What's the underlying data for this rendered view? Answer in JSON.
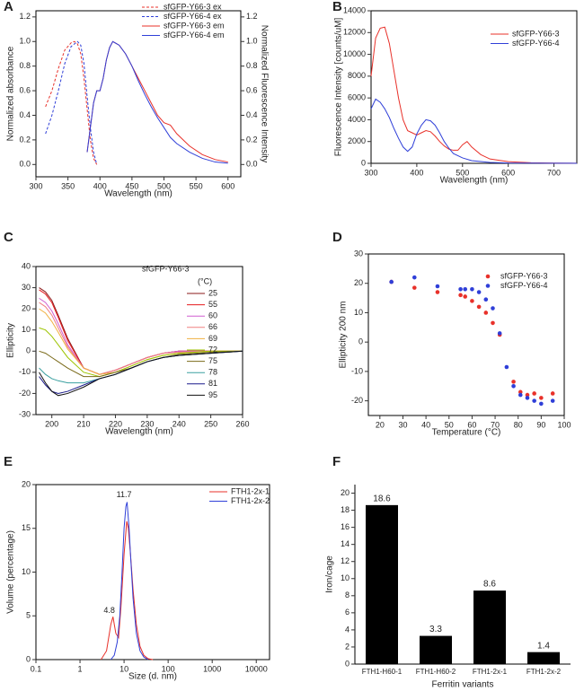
{
  "chart_data": [
    {
      "label": "A",
      "type": "line",
      "xlabel": "Wavelength (nm)",
      "ylabel": "Normalized absorbance",
      "y2label": "Normalized Fluorescence Intensity",
      "xlim": [
        300,
        620
      ],
      "xticks": [
        300,
        350,
        400,
        450,
        500,
        550,
        600
      ],
      "ylim": [
        -0.1,
        1.25
      ],
      "yticks": [
        {
          "value": 0,
          "label": "0.0"
        },
        0.2,
        0.4,
        0.6,
        0.8,
        {
          "value": 1,
          "label": "1.0"
        },
        1.2
      ],
      "y2lim": [
        -0.1,
        1.25
      ],
      "y2ticks": [
        {
          "value": 0,
          "label": "0.0"
        },
        0.2,
        0.4,
        0.6,
        0.8,
        {
          "value": 1,
          "label": "1.0"
        },
        1.2
      ],
      "legend": "upper right",
      "series": [
        {
          "name": "sfGFP-Y66-3 ex",
          "color": "#e8312a",
          "style": "dashed",
          "x": [
            315,
            325,
            335,
            345,
            355,
            360,
            365,
            370,
            375,
            380,
            385,
            390,
            395
          ],
          "values": [
            0.47,
            0.6,
            0.78,
            0.93,
            0.99,
            1.0,
            0.98,
            0.9,
            0.7,
            0.45,
            0.2,
            0.05,
            0.0
          ]
        },
        {
          "name": "sfGFP-Y66-4 ex",
          "color": "#2f3fd8",
          "style": "dashed",
          "x": [
            315,
            325,
            335,
            345,
            355,
            365,
            370,
            375,
            380,
            385,
            390,
            395
          ],
          "values": [
            0.25,
            0.4,
            0.6,
            0.82,
            0.96,
            1.0,
            0.97,
            0.82,
            0.55,
            0.3,
            0.1,
            0.0
          ]
        },
        {
          "name": "sfGFP-Y66-3 em",
          "color": "#e8312a",
          "style": "solid",
          "axis": "y2",
          "x": [
            380,
            385,
            390,
            395,
            400,
            405,
            410,
            415,
            420,
            430,
            440,
            450,
            460,
            470,
            480,
            490,
            500,
            510,
            520,
            540,
            560,
            580,
            600
          ],
          "values": [
            0.1,
            0.3,
            0.5,
            0.6,
            0.6,
            0.7,
            0.85,
            0.95,
            1.0,
            0.97,
            0.9,
            0.8,
            0.7,
            0.6,
            0.5,
            0.4,
            0.34,
            0.32,
            0.25,
            0.15,
            0.08,
            0.04,
            0.02
          ]
        },
        {
          "name": "sfGFP-Y66-4 em",
          "color": "#2f3fd8",
          "style": "solid",
          "axis": "y2",
          "x": [
            380,
            385,
            390,
            395,
            400,
            405,
            410,
            415,
            420,
            430,
            440,
            450,
            460,
            470,
            480,
            490,
            500,
            510,
            520,
            540,
            560,
            580,
            600
          ],
          "values": [
            0.1,
            0.3,
            0.5,
            0.6,
            0.6,
            0.7,
            0.85,
            0.95,
            1.0,
            0.97,
            0.9,
            0.8,
            0.68,
            0.57,
            0.47,
            0.38,
            0.3,
            0.22,
            0.17,
            0.1,
            0.05,
            0.02,
            0.01
          ]
        }
      ]
    },
    {
      "label": "B",
      "type": "line",
      "xlabel": "Wavelength (nm)",
      "ylabel": "Fluorescence Intensity [counts/uM]",
      "xlim": [
        300,
        750
      ],
      "xticks": [
        300,
        400,
        500,
        600,
        700
      ],
      "ylim": [
        0,
        14000
      ],
      "yticks": [
        0,
        2000,
        4000,
        6000,
        8000,
        10000,
        12000,
        14000
      ],
      "legend": "upper right",
      "series": [
        {
          "name": "sfGFP-Y66-3",
          "color": "#e8312a",
          "style": "solid",
          "x": [
            300,
            310,
            320,
            330,
            340,
            350,
            360,
            370,
            380,
            390,
            400,
            410,
            420,
            430,
            440,
            450,
            460,
            470,
            480,
            490,
            500,
            510,
            520,
            540,
            560,
            600,
            650,
            700,
            750
          ],
          "values": [
            8000,
            11500,
            12400,
            12500,
            11000,
            8500,
            6000,
            4000,
            3000,
            2800,
            2600,
            2800,
            3000,
            2900,
            2500,
            2000,
            1600,
            1300,
            1200,
            1200,
            1700,
            2000,
            1500,
            800,
            400,
            150,
            50,
            20,
            10
          ]
        },
        {
          "name": "sfGFP-Y66-4",
          "color": "#2f3fd8",
          "style": "solid",
          "x": [
            300,
            310,
            320,
            330,
            340,
            350,
            360,
            370,
            380,
            390,
            400,
            410,
            420,
            430,
            440,
            450,
            460,
            470,
            480,
            500,
            520,
            560,
            600,
            700,
            750
          ],
          "values": [
            5000,
            5900,
            5600,
            5000,
            4200,
            3200,
            2300,
            1500,
            1100,
            1500,
            2700,
            3500,
            4000,
            3900,
            3500,
            2800,
            2000,
            1400,
            900,
            500,
            250,
            80,
            30,
            10,
            5
          ]
        }
      ]
    },
    {
      "label": "C",
      "type": "line",
      "xlabel": "Wavelength (nm)",
      "ylabel": "Ellipticity",
      "xlim": [
        195,
        260
      ],
      "xticks": [
        200,
        210,
        220,
        230,
        240,
        250,
        260
      ],
      "ylim": [
        -30,
        40
      ],
      "yticks": [
        -30,
        -20,
        -10,
        0,
        10,
        20,
        30,
        40
      ],
      "legend": "upper right",
      "legend_title": "sfGFP-Y66-3",
      "legend_unit": "(°C)",
      "series": [
        {
          "name": "25",
          "color": "#8b1a1a",
          "style": "solid",
          "x": [
            196,
            198,
            200,
            202,
            205,
            210,
            215,
            220,
            225,
            230,
            235,
            240,
            250,
            260
          ],
          "values": [
            30,
            28,
            24,
            17,
            6,
            -8,
            -11,
            -9,
            -6,
            -3,
            -1,
            0,
            0,
            0
          ]
        },
        {
          "name": "55",
          "color": "#e41a1c",
          "style": "solid",
          "x": [
            196,
            198,
            200,
            202,
            205,
            210,
            215,
            220,
            225,
            230,
            235,
            240,
            250,
            260
          ],
          "values": [
            29,
            27,
            23,
            16,
            5,
            -8,
            -11,
            -9,
            -6,
            -3,
            -1,
            0,
            0,
            0
          ]
        },
        {
          "name": "60",
          "color": "#d05fd0",
          "style": "solid",
          "x": [
            196,
            198,
            200,
            202,
            205,
            210,
            215,
            220,
            225,
            230,
            235,
            240,
            250,
            260
          ],
          "values": [
            25,
            23,
            19,
            13,
            3,
            -8,
            -11,
            -9,
            -6,
            -3,
            -1,
            0,
            0,
            0
          ]
        },
        {
          "name": "66",
          "color": "#f08080",
          "style": "solid",
          "x": [
            196,
            198,
            200,
            202,
            205,
            210,
            215,
            220,
            225,
            230,
            235,
            240,
            250,
            260
          ],
          "values": [
            23,
            21,
            17,
            11,
            2,
            -8,
            -11,
            -9,
            -6,
            -3,
            -1,
            -0.5,
            0,
            0
          ]
        },
        {
          "name": "69",
          "color": "#f0b040",
          "style": "solid",
          "x": [
            196,
            198,
            200,
            202,
            205,
            210,
            215,
            220,
            225,
            230,
            235,
            240,
            250,
            260
          ],
          "values": [
            20,
            18,
            14,
            9,
            1,
            -8,
            -11,
            -10,
            -7,
            -4,
            -2,
            -1,
            0,
            0
          ]
        },
        {
          "name": "72",
          "color": "#9cc400",
          "style": "solid",
          "x": [
            196,
            198,
            200,
            202,
            205,
            210,
            215,
            220,
            225,
            230,
            235,
            240,
            250,
            260
          ],
          "values": [
            11,
            10,
            7,
            3,
            -3,
            -10,
            -12,
            -10,
            -7,
            -4,
            -2,
            -1,
            0,
            0
          ]
        },
        {
          "name": "75",
          "color": "#7a6a1a",
          "style": "solid",
          "x": [
            196,
            198,
            200,
            202,
            205,
            210,
            215,
            220,
            225,
            230,
            235,
            240,
            250,
            260
          ],
          "values": [
            0,
            -1,
            -3,
            -5,
            -8,
            -12,
            -12,
            -10,
            -8,
            -5,
            -3,
            -1.5,
            -0.5,
            0
          ]
        },
        {
          "name": "78",
          "color": "#3aa0a0",
          "style": "solid",
          "x": [
            196,
            198,
            200,
            202,
            205,
            210,
            215,
            220,
            225,
            230,
            235,
            240,
            250,
            260
          ],
          "values": [
            -8,
            -11,
            -13,
            -14,
            -15,
            -15,
            -13,
            -11,
            -8,
            -5,
            -3,
            -2,
            -1,
            0
          ]
        },
        {
          "name": "81",
          "color": "#1a1a8b",
          "style": "solid",
          "x": [
            196,
            198,
            200,
            202,
            205,
            210,
            215,
            220,
            225,
            230,
            235,
            240,
            250,
            260
          ],
          "values": [
            -12,
            -16,
            -19,
            -20,
            -19,
            -16,
            -13,
            -11,
            -8,
            -5,
            -3,
            -2,
            -1,
            0
          ]
        },
        {
          "name": "95",
          "color": "#111111",
          "style": "solid",
          "x": [
            196,
            198,
            200,
            202,
            205,
            210,
            215,
            220,
            225,
            230,
            235,
            240,
            250,
            260
          ],
          "values": [
            -10,
            -15,
            -19,
            -21,
            -20,
            -17,
            -13,
            -11,
            -8,
            -5,
            -3,
            -2,
            -1,
            0
          ]
        }
      ]
    },
    {
      "label": "D",
      "type": "scatter",
      "xlabel": "Temperature (°C)",
      "ylabel": "Ellipticity 200 nm",
      "xlim": [
        15,
        100
      ],
      "xticks": [
        20,
        30,
        40,
        50,
        60,
        70,
        80,
        90,
        100
      ],
      "ylim": [
        -25,
        30
      ],
      "yticks": [
        -20,
        -10,
        0,
        10,
        20,
        30
      ],
      "legend": "upper right",
      "series": [
        {
          "name": "sfGFP-Y66-3",
          "color": "#e8312a",
          "x": [
            25,
            35,
            45,
            55,
            57,
            60,
            63,
            66,
            69,
            72,
            78,
            81,
            84,
            87,
            90,
            95
          ],
          "values": [
            20.5,
            18.5,
            17,
            16,
            15.5,
            14,
            12,
            10,
            6.5,
            2.5,
            -13.5,
            -17,
            -18,
            -17.5,
            -19,
            -17.5
          ]
        },
        {
          "name": "sfGFP-Y66-4",
          "color": "#2f3fd8",
          "x": [
            25,
            35,
            45,
            55,
            57,
            60,
            63,
            66,
            69,
            72,
            75,
            78,
            81,
            84,
            87,
            90,
            95
          ],
          "values": [
            20.5,
            22,
            19,
            18,
            18,
            18,
            17,
            14.5,
            11.5,
            3,
            -8.5,
            -15,
            -18,
            -19,
            -20,
            -21,
            -20
          ]
        }
      ]
    },
    {
      "label": "E",
      "type": "line",
      "xlabel": "Size (d. nm)",
      "ylabel": "Volume (percentage)",
      "xscale": "log",
      "xlim": [
        0.1,
        20000
      ],
      "xticks": [
        0.1,
        1,
        10,
        100,
        1000,
        10000
      ],
      "ylim": [
        0,
        20
      ],
      "yticks": [
        0,
        5,
        10,
        15,
        20
      ],
      "legend": "upper right",
      "annotations": [
        {
          "text": "4.8",
          "x": 5.3,
          "y": 5.6
        },
        {
          "text": "11.7",
          "x": 11.5,
          "y": 18.8
        }
      ],
      "series": [
        {
          "name": "FTH1-2x-1",
          "color": "#e8312a",
          "style": "solid",
          "x": [
            3,
            4,
            5,
            5.6,
            6.5,
            7.5,
            8.5,
            10,
            11.5,
            12.5,
            14,
            16,
            19,
            23,
            28,
            35,
            45
          ],
          "values": [
            0,
            1,
            4,
            4.9,
            3,
            2.5,
            6,
            12,
            15.8,
            15,
            12,
            8,
            4,
            1.5,
            0.5,
            0.1,
            0
          ]
        },
        {
          "name": "FTH1-2x-2",
          "color": "#2f3fd8",
          "style": "solid",
          "x": [
            5,
            6,
            7,
            8,
            9,
            10,
            11,
            11.7,
            13,
            14,
            16,
            19,
            23,
            28,
            35
          ],
          "values": [
            0,
            0.5,
            2,
            5,
            10,
            15,
            17.5,
            18,
            15,
            12,
            7,
            3,
            1,
            0.3,
            0
          ]
        }
      ]
    },
    {
      "label": "F",
      "type": "bar",
      "xlabel": "Ferritin variants",
      "ylabel": "Iron/cage",
      "categories": [
        "FTH1-H60-1",
        "FTH1-H60-2",
        "FTH1-2x-1",
        "FTH1-2x-2"
      ],
      "values": [
        18.6,
        3.3,
        8.6,
        1.4
      ],
      "color": "#000000",
      "ylim": [
        0,
        21
      ],
      "yticks": [
        0,
        2,
        4,
        6,
        8,
        10,
        12,
        14,
        16,
        18,
        20
      ]
    }
  ]
}
